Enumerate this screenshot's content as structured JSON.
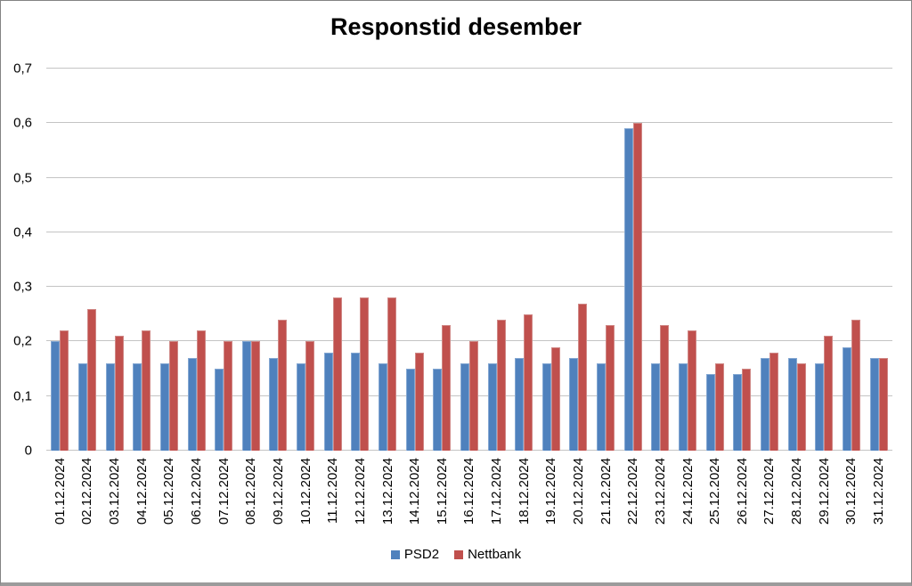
{
  "chart_data": {
    "type": "bar",
    "title": "Responstid desember",
    "categories": [
      "01.12.2024",
      "02.12.2024",
      "03.12.2024",
      "04.12.2024",
      "05.12.2024",
      "06.12.2024",
      "07.12.2024",
      "08.12.2024",
      "09.12.2024",
      "10.12.2024",
      "11.12.2024",
      "12.12.2024",
      "13.12.2024",
      "14.12.2024",
      "15.12.2024",
      "16.12.2024",
      "17.12.2024",
      "18.12.2024",
      "19.12.2024",
      "20.12.2024",
      "21.12.2024",
      "22.12.2024",
      "23.12.2024",
      "24.12.2024",
      "25.12.2024",
      "26.12.2024",
      "27.12.2024",
      "28.12.2024",
      "29.12.2024",
      "30.12.2024",
      "31.12.2024"
    ],
    "series": [
      {
        "name": "PSD2",
        "color": "#4F81BD",
        "border_color": "#83A7D2",
        "values": [
          0.2,
          0.16,
          0.16,
          0.16,
          0.16,
          0.17,
          0.15,
          0.2,
          0.17,
          0.16,
          0.18,
          0.18,
          0.16,
          0.15,
          0.15,
          0.16,
          0.16,
          0.17,
          0.16,
          0.17,
          0.16,
          0.59,
          0.16,
          0.16,
          0.14,
          0.14,
          0.17,
          0.17,
          0.16,
          0.19,
          0.17
        ]
      },
      {
        "name": "Nettbank",
        "color": "#C0504D",
        "border_color": "#D08886",
        "values": [
          0.22,
          0.26,
          0.21,
          0.22,
          0.2,
          0.22,
          0.2,
          0.2,
          0.24,
          0.2,
          0.28,
          0.28,
          0.28,
          0.18,
          0.23,
          0.2,
          0.24,
          0.25,
          0.19,
          0.27,
          0.23,
          0.6,
          0.23,
          0.22,
          0.16,
          0.15,
          0.18,
          0.16,
          0.21,
          0.24,
          0.17
        ]
      }
    ],
    "ylim": [
      0,
      0.7
    ],
    "yticks": [
      {
        "v": 0.0,
        "label": "0"
      },
      {
        "v": 0.1,
        "label": "0,1"
      },
      {
        "v": 0.2,
        "label": "0,2"
      },
      {
        "v": 0.3,
        "label": "0,3"
      },
      {
        "v": 0.4,
        "label": "0,4"
      },
      {
        "v": 0.5,
        "label": "0,5"
      },
      {
        "v": 0.6,
        "label": "0,6"
      },
      {
        "v": 0.7,
        "label": "0,7"
      }
    ],
    "grid": true,
    "legend_position": "bottom",
    "gridline_color": "#c4c4c4"
  }
}
